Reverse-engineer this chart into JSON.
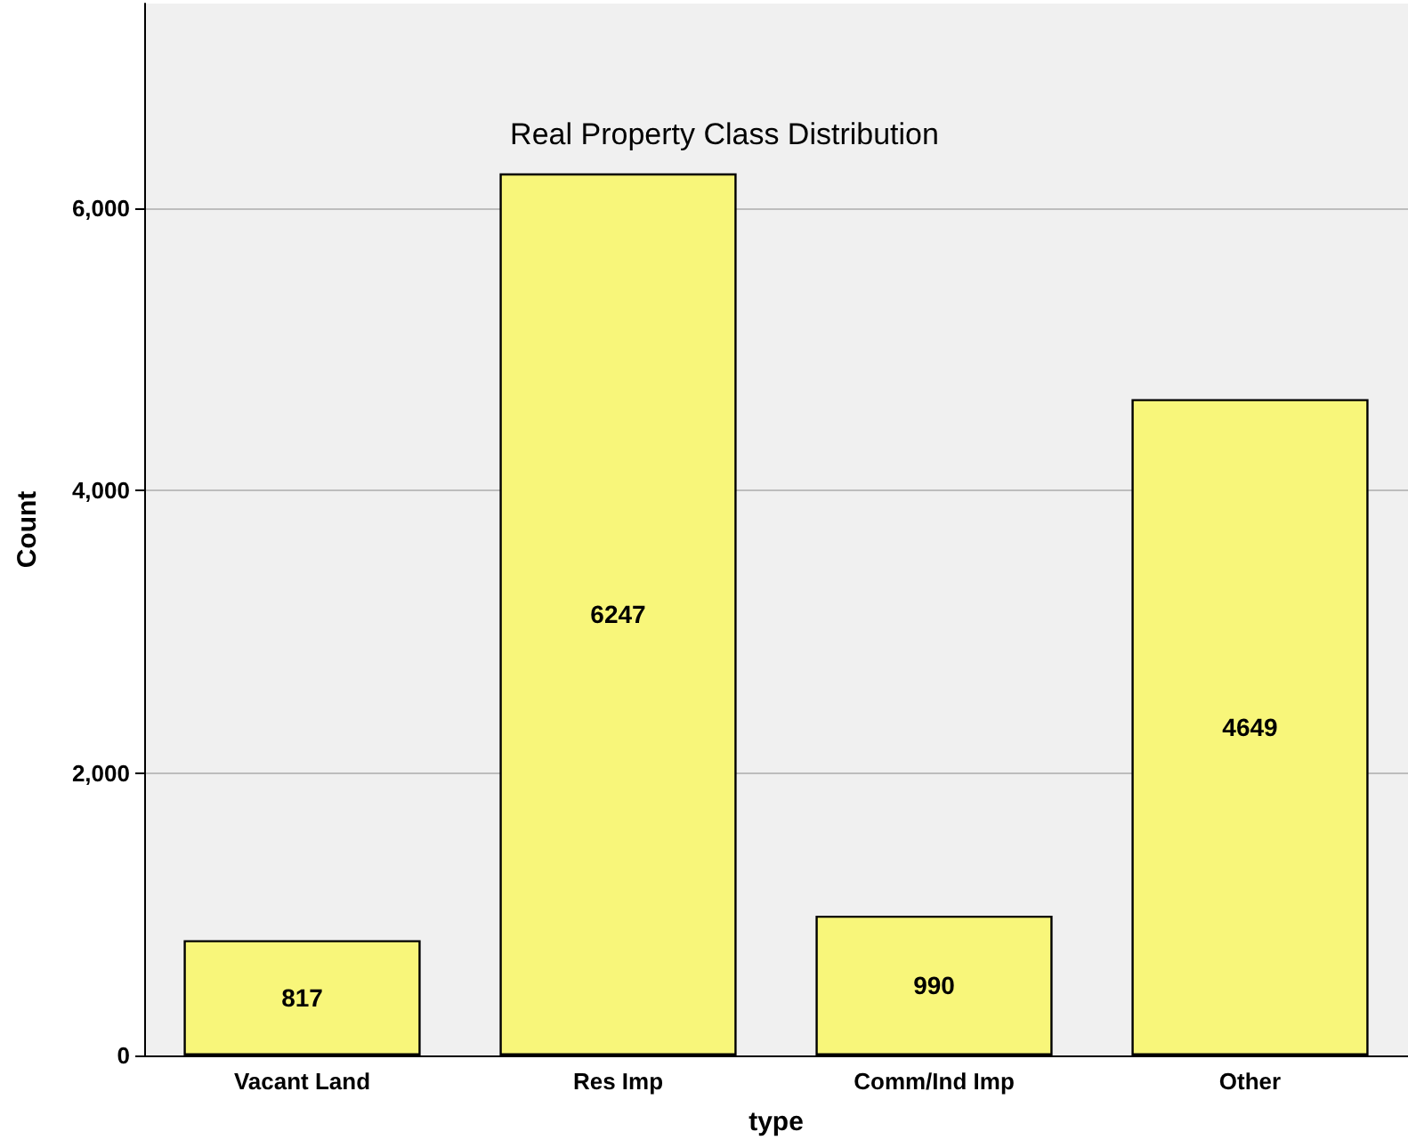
{
  "chart_data": {
    "type": "bar",
    "title": "Real Property Class Distribution",
    "xlabel": "type",
    "ylabel": "Count",
    "categories": [
      "Vacant Land",
      "Res Imp",
      "Comm/Ind Imp",
      "Other"
    ],
    "values": [
      817,
      6247,
      990,
      4649
    ],
    "color": "#f8f67a",
    "ylim": [
      0,
      7450
    ],
    "yticks": [
      {
        "value": 0,
        "label": "0"
      },
      {
        "value": 2000,
        "label": "2,000"
      },
      {
        "value": 4000,
        "label": "4,000"
      },
      {
        "value": 6000,
        "label": "6,000"
      }
    ],
    "grid": "y",
    "data_labels": true
  }
}
